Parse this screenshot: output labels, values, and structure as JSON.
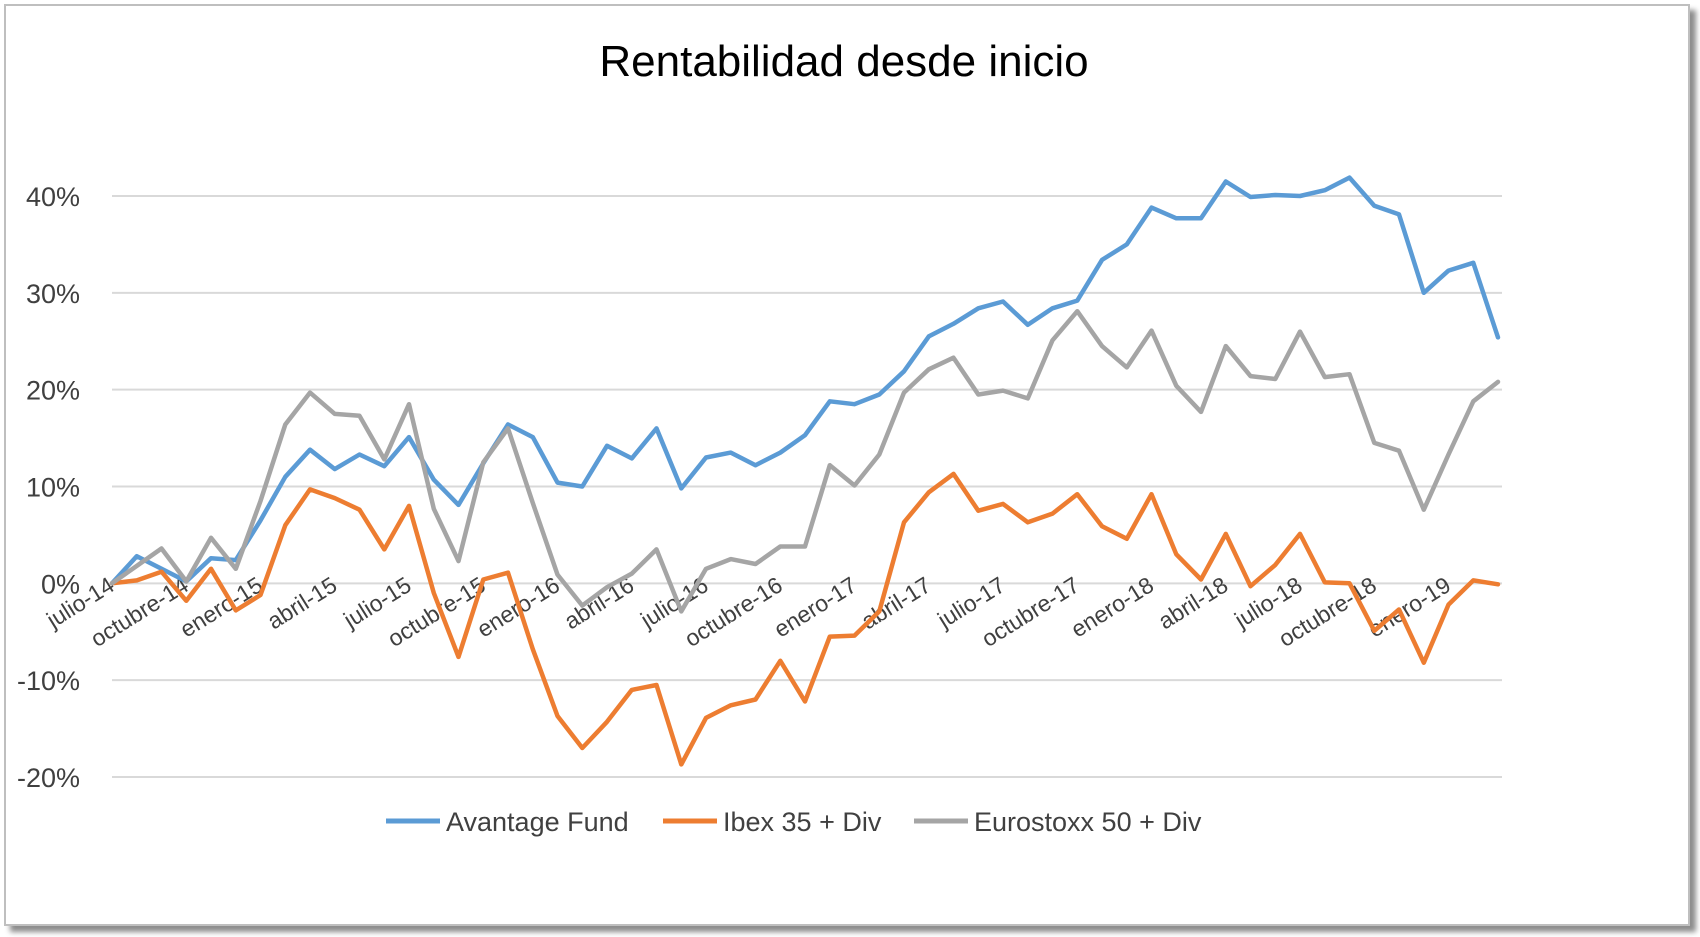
{
  "chart_data": {
    "type": "line",
    "title": "Rentabilidad desde inicio",
    "xlabel": "",
    "ylabel": "",
    "ylim": [
      -0.2,
      0.4
    ],
    "yticks": [
      0.4,
      0.3,
      0.2,
      0.1,
      0,
      -0.1,
      -0.2
    ],
    "ytick_labels": [
      "40%",
      "30%",
      "20%",
      "10%",
      "0%",
      "-10%",
      "-20%"
    ],
    "grid": true,
    "legend_position": "bottom",
    "x_tick_labels": [
      "julio-14",
      "octubre-14",
      "enero-15",
      "abril-15",
      "julio-15",
      "octubre-15",
      "enero-16",
      "abril-16",
      "julio-16",
      "octubre-16",
      "enero-17",
      "abril-17",
      "julio-17",
      "octubre-17",
      "enero-18",
      "abril-18",
      "julio-18",
      "octubre-18",
      "enero-19"
    ],
    "x_tick_months": [
      0,
      3,
      6,
      9,
      12,
      15,
      18,
      21,
      24,
      27,
      30,
      33,
      36,
      39,
      42,
      45,
      48,
      51,
      54
    ],
    "x_months": [
      0,
      1,
      2,
      3,
      4,
      5,
      6,
      7,
      8,
      9,
      10,
      11,
      12,
      13,
      14,
      15,
      16,
      17,
      18,
      19,
      20,
      21,
      22,
      23,
      24,
      25,
      26,
      27,
      28,
      29,
      30,
      31,
      32,
      33,
      34,
      35,
      36,
      37,
      38,
      39,
      40,
      41,
      42,
      43,
      44,
      45,
      46,
      47,
      48,
      49,
      50,
      51,
      52,
      53,
      54,
      55,
      56
    ],
    "series": [
      {
        "name": "Avantage Fund",
        "color": "#5b9bd5",
        "values": [
          0,
          0.028,
          0.015,
          0.002,
          0.026,
          0.024,
          0.065,
          0.11,
          0.138,
          0.118,
          0.133,
          0.121,
          0.151,
          0.107,
          0.081,
          0.124,
          0.164,
          0.151,
          0.104,
          0.1,
          0.142,
          0.129,
          0.16,
          0.098,
          0.13,
          0.135,
          0.122,
          0.135,
          0.153,
          0.188,
          0.185,
          0.195,
          0.219,
          0.255,
          0.268,
          0.284,
          0.291,
          0.267,
          0.284,
          0.292,
          0.334,
          0.35,
          0.388,
          0.377,
          0.377,
          0.415,
          0.399,
          0.401,
          0.4,
          0.406,
          0.419,
          0.39,
          0.381,
          0.3,
          0.323,
          0.331,
          0.254
        ]
      },
      {
        "name": "Ibex 35 + Div",
        "color": "#ed7d31",
        "values": [
          0,
          0.003,
          0.012,
          -0.018,
          0.015,
          -0.028,
          -0.012,
          0.06,
          0.097,
          0.088,
          0.076,
          0.035,
          0.08,
          -0.01,
          -0.076,
          0.004,
          0.011,
          -0.068,
          -0.137,
          -0.17,
          -0.143,
          -0.11,
          -0.105,
          -0.187,
          -0.139,
          -0.126,
          -0.12,
          -0.08,
          -0.122,
          -0.055,
          -0.054,
          -0.029,
          0.063,
          0.094,
          0.113,
          0.075,
          0.082,
          0.063,
          0.072,
          0.092,
          0.059,
          0.046,
          0.092,
          0.03,
          0.004,
          0.051,
          -0.003,
          0.019,
          0.051,
          0.001,
          0,
          -0.049,
          -0.027,
          -0.082,
          -0.022,
          0.003,
          -0.001
        ]
      },
      {
        "name": "Eurostoxx 50 + Div",
        "color": "#a5a5a5",
        "values": [
          0,
          0.018,
          0.036,
          0.002,
          0.047,
          0.015,
          0.085,
          0.164,
          0.197,
          0.175,
          0.173,
          0.128,
          0.185,
          0.077,
          0.023,
          0.125,
          0.16,
          0.083,
          0.009,
          -0.023,
          -0.004,
          0.01,
          0.035,
          -0.029,
          0.015,
          0.025,
          0.02,
          0.038,
          0.038,
          0.122,
          0.101,
          0.133,
          0.197,
          0.221,
          0.233,
          0.195,
          0.199,
          0.191,
          0.251,
          0.281,
          0.245,
          0.223,
          0.261,
          0.204,
          0.177,
          0.245,
          0.214,
          0.211,
          0.26,
          0.213,
          0.216,
          0.145,
          0.137,
          0.076,
          0.133,
          0.188,
          0.208
        ]
      }
    ]
  }
}
